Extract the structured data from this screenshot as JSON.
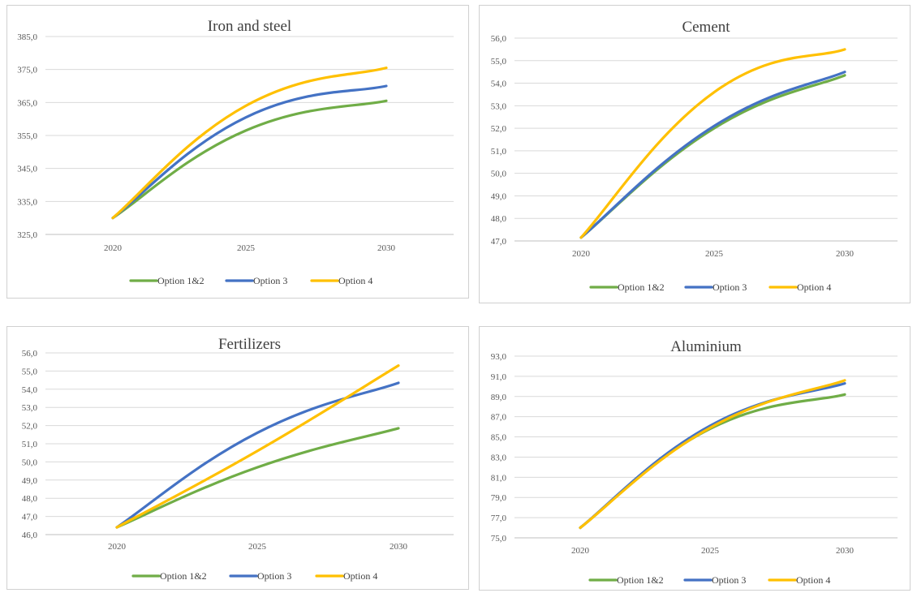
{
  "colors": {
    "grid": "#d9d9d9",
    "axis": "#bfbfbf",
    "series": [
      "#70ad47",
      "#4472c4",
      "#ffc000"
    ]
  },
  "chart_data": [
    {
      "type": "line",
      "title": "Iron and steel",
      "x": [
        "2020",
        "2025",
        "2030"
      ],
      "ylim": [
        325,
        385
      ],
      "yticks": [
        "325,0",
        "335,0",
        "345,0",
        "355,0",
        "365,0",
        "375,0",
        "385,0"
      ],
      "grid": true,
      "legend_position": "bottom",
      "series": [
        {
          "name": "Option 1&2",
          "values": [
            330.0,
            356.5,
            365.5
          ]
        },
        {
          "name": "Option 3",
          "values": [
            330.0,
            360.5,
            370.0
          ]
        },
        {
          "name": "Option 4",
          "values": [
            330.0,
            364.0,
            375.5
          ]
        }
      ]
    },
    {
      "type": "line",
      "title": "Cement",
      "x": [
        "2020",
        "2025",
        "2030"
      ],
      "ylim": [
        47,
        56
      ],
      "yticks": [
        "47,0",
        "48,0",
        "49,0",
        "50,0",
        "51,0",
        "52,0",
        "53,0",
        "54,0",
        "55,0",
        "56,0"
      ],
      "grid": true,
      "legend_position": "bottom",
      "series": [
        {
          "name": "Option 1&2",
          "values": [
            47.15,
            52.0,
            54.35
          ]
        },
        {
          "name": "Option 3",
          "values": [
            47.15,
            52.1,
            54.5
          ]
        },
        {
          "name": "Option 4",
          "values": [
            47.15,
            53.6,
            55.5
          ]
        }
      ]
    },
    {
      "type": "line",
      "title": "Fertilizers",
      "x": [
        "2020",
        "2025",
        "2030"
      ],
      "ylim": [
        46,
        56
      ],
      "yticks": [
        "46,0",
        "47,0",
        "48,0",
        "49,0",
        "50,0",
        "51,0",
        "52,0",
        "53,0",
        "54,0",
        "55,0",
        "56,0"
      ],
      "grid": true,
      "legend_position": "bottom",
      "series": [
        {
          "name": "Option 1&2",
          "values": [
            46.4,
            49.7,
            51.85
          ]
        },
        {
          "name": "Option 3",
          "values": [
            46.4,
            51.6,
            54.35
          ]
        },
        {
          "name": "Option 4",
          "values": [
            46.4,
            50.6,
            55.3
          ]
        }
      ]
    },
    {
      "type": "line",
      "title": "Aluminium",
      "x": [
        "2020",
        "2025",
        "2030"
      ],
      "ylim": [
        75,
        93
      ],
      "yticks": [
        "75,0",
        "77,0",
        "79,0",
        "81,0",
        "83,0",
        "85,0",
        "87,0",
        "89,0",
        "91,0",
        "93,0"
      ],
      "grid": true,
      "legend_position": "bottom",
      "series": [
        {
          "name": "Option 1&2",
          "values": [
            76.0,
            85.8,
            89.2
          ]
        },
        {
          "name": "Option 3",
          "values": [
            76.0,
            86.1,
            90.3
          ]
        },
        {
          "name": "Option 4",
          "values": [
            76.0,
            85.9,
            90.6
          ]
        }
      ]
    }
  ]
}
